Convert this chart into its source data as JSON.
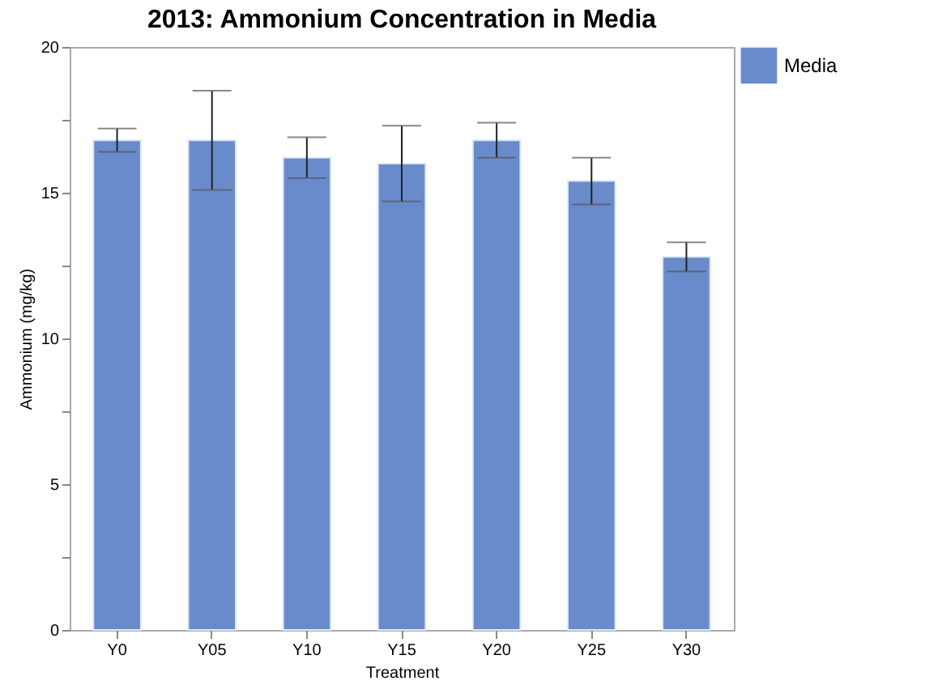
{
  "chart_data": {
    "type": "bar",
    "title": "2013: Ammonium Concentration in Media",
    "xlabel": "Treatment",
    "ylabel": "Ammonium (mg/kg)",
    "categories": [
      "Y0",
      "Y05",
      "Y10",
      "Y15",
      "Y20",
      "Y25",
      "Y30"
    ],
    "series": [
      {
        "name": "Media",
        "color": "#6a8bcb",
        "values": [
          16.8,
          16.8,
          16.2,
          16.0,
          16.8,
          15.4,
          12.8
        ],
        "errors": [
          0.4,
          1.7,
          0.7,
          1.3,
          0.6,
          0.8,
          0.5
        ]
      }
    ],
    "ylim": [
      0,
      20
    ],
    "yticks": [
      0,
      {
        "value": 2.5,
        "label": null
      },
      5,
      {
        "value": 7.5,
        "label": null
      },
      10,
      {
        "value": 12.5,
        "label": null
      },
      15,
      {
        "value": 17.5,
        "label": null
      },
      20
    ],
    "grid": false,
    "legend": "top right"
  }
}
